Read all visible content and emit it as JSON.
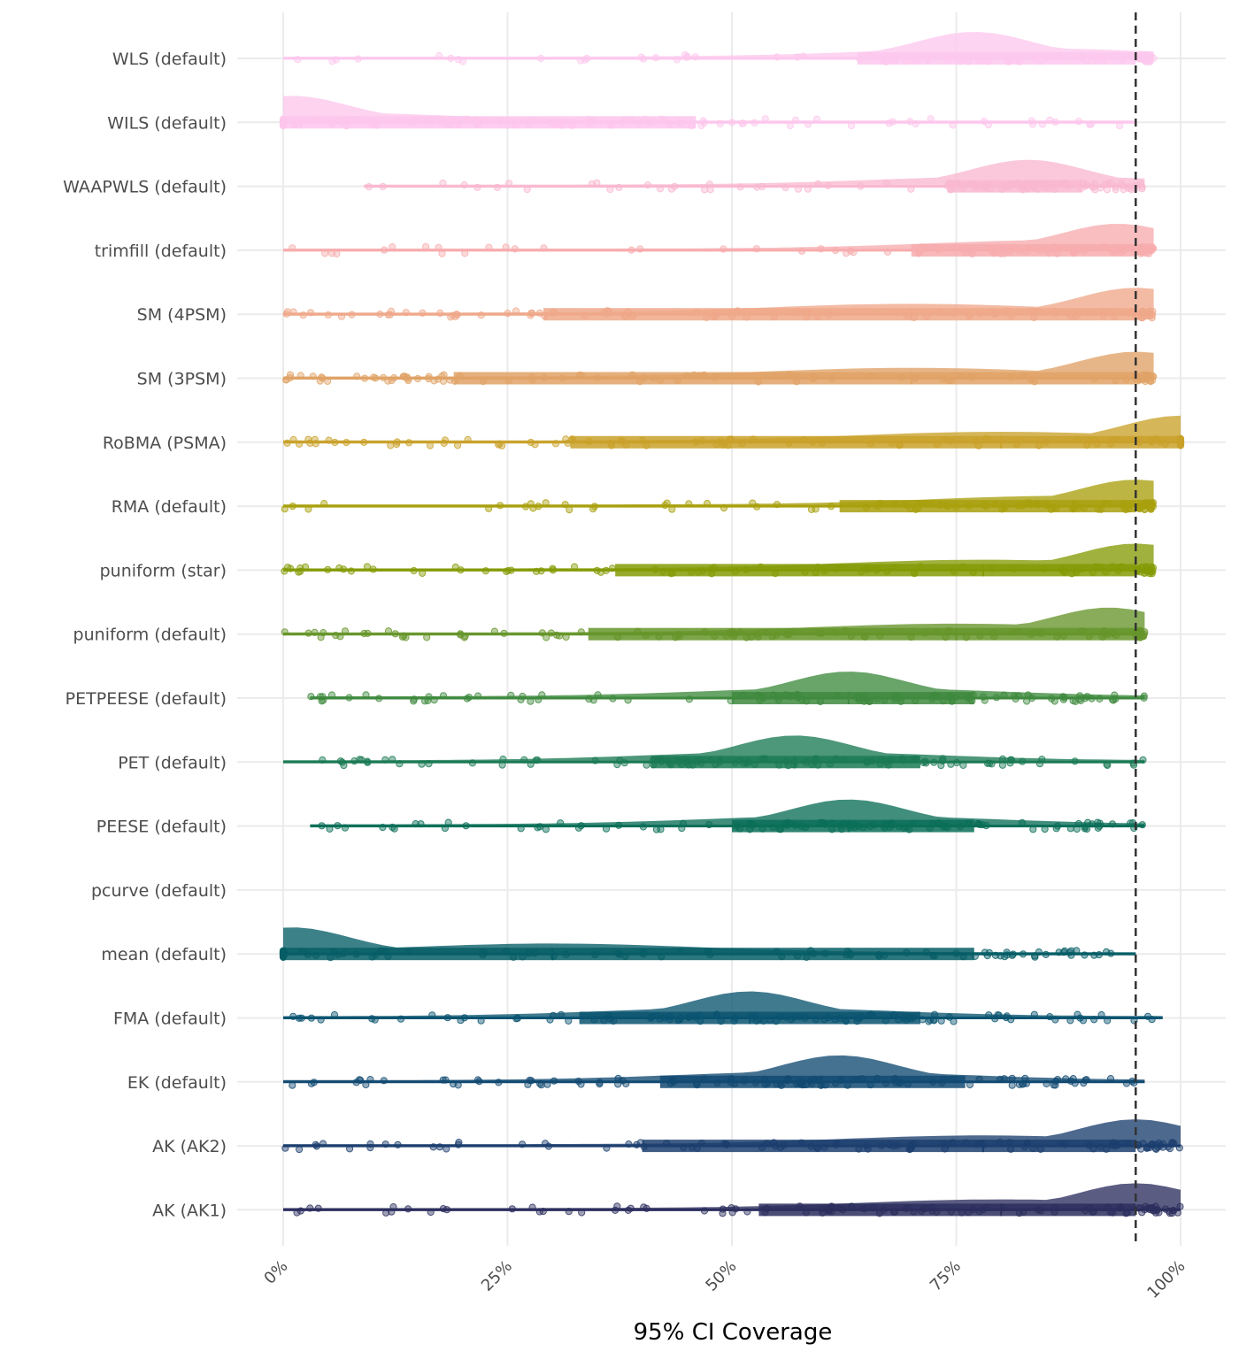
{
  "chart_data": {
    "type": "raincloud",
    "title": "",
    "xlabel": "95% CI Coverage",
    "ylabel": "",
    "xlim": [
      0,
      100
    ],
    "x_ticks": [
      "0%",
      "25%",
      "50%",
      "75%",
      "100%"
    ],
    "x_tick_values": [
      0,
      25,
      50,
      75,
      100
    ],
    "reference_line": 95,
    "grid": true,
    "legend": "none",
    "categories": [
      "WLS (default)",
      "WILS (default)",
      "WAAPWLS (default)",
      "trimfill (default)",
      "SM (4PSM)",
      "SM (3PSM)",
      "RoBMA (PSMA)",
      "RMA (default)",
      "puniform (star)",
      "puniform (default)",
      "PETPEESE (default)",
      "PET (default)",
      "PEESE (default)",
      "pcurve (default)",
      "mean (default)",
      "FMA (default)",
      "EK (default)",
      "AK (AK2)",
      "AK (AK1)"
    ],
    "series": [
      {
        "name": "WLS (default)",
        "color": "#FDC8EE",
        "min": 0,
        "q1": 64,
        "median": 81,
        "q3": 95,
        "max": 97,
        "density_peak": 77
      },
      {
        "name": "WILS (default)",
        "color": "#FDC6EC",
        "min": 0,
        "q1": 0,
        "median": 2,
        "q3": 46,
        "max": 95,
        "density_peak": 1
      },
      {
        "name": "WAAPWLS (default)",
        "color": "#F9B8D0",
        "min": 9,
        "q1": 74,
        "median": 83,
        "q3": 89,
        "max": 96,
        "density_peak": 83
      },
      {
        "name": "trimfill (default)",
        "color": "#F7ACAE",
        "min": 0,
        "q1": 70,
        "median": 88,
        "q3": 95,
        "max": 97,
        "density_peak": 93
      },
      {
        "name": "SM (4PSM)",
        "color": "#EFA88A",
        "min": 0,
        "q1": 29,
        "median": 70,
        "q3": 95,
        "max": 97,
        "density_peak": 95
      },
      {
        "name": "SM (3PSM)",
        "color": "#E0A266",
        "min": 0,
        "q1": 19,
        "median": 70,
        "q3": 95,
        "max": 97,
        "density_peak": 95
      },
      {
        "name": "RoBMA (PSMA)",
        "color": "#C9A12A",
        "min": 0,
        "q1": 32,
        "median": 80,
        "q3": 100,
        "max": 100,
        "density_peak": 100
      },
      {
        "name": "RMA (default)",
        "color": "#A9A00E",
        "min": 0,
        "q1": 62,
        "median": 88,
        "q3": 95,
        "max": 97,
        "density_peak": 95
      },
      {
        "name": "puniform (star)",
        "color": "#859B06",
        "min": 0,
        "q1": 37,
        "median": 78,
        "q3": 95,
        "max": 97,
        "density_peak": 95
      },
      {
        "name": "puniform (default)",
        "color": "#66952A",
        "min": 0,
        "q1": 34,
        "median": 75,
        "q3": 95,
        "max": 96,
        "density_peak": 92
      },
      {
        "name": "PETPEESE (default)",
        "color": "#3F8A3E",
        "min": 3,
        "q1": 50,
        "median": 63,
        "q3": 77,
        "max": 96,
        "density_peak": 63
      },
      {
        "name": "PET (default)",
        "color": "#1B7A55",
        "min": 0,
        "q1": 41,
        "median": 57,
        "q3": 71,
        "max": 96,
        "density_peak": 57
      },
      {
        "name": "PEESE (default)",
        "color": "#0B6E58",
        "min": 3,
        "q1": 50,
        "median": 63,
        "q3": 77,
        "max": 96,
        "density_peak": 63
      },
      {
        "name": "pcurve (default)",
        "color": "#08655C",
        "min": null,
        "q1": null,
        "median": null,
        "q3": null,
        "max": null,
        "density_peak": null
      },
      {
        "name": "mean (default)",
        "color": "#075E66",
        "min": 0,
        "q1": 0,
        "median": 30,
        "q3": 77,
        "max": 95,
        "density_peak": 1
      },
      {
        "name": "FMA (default)",
        "color": "#0A5470",
        "min": 0,
        "q1": 33,
        "median": 52,
        "q3": 71,
        "max": 98,
        "density_peak": 52
      },
      {
        "name": "EK (default)",
        "color": "#124A72",
        "min": 0,
        "q1": 42,
        "median": 60,
        "q3": 76,
        "max": 96,
        "density_peak": 62
      },
      {
        "name": "AK (AK2)",
        "color": "#1C3F6E",
        "min": 0,
        "q1": 40,
        "median": 78,
        "q3": 95,
        "max": 100,
        "density_peak": 95
      },
      {
        "name": "AK (AK1)",
        "color": "#2C2E5E",
        "min": 0,
        "q1": 53,
        "median": 80,
        "q3": 95,
        "max": 100,
        "density_peak": 95
      }
    ]
  }
}
